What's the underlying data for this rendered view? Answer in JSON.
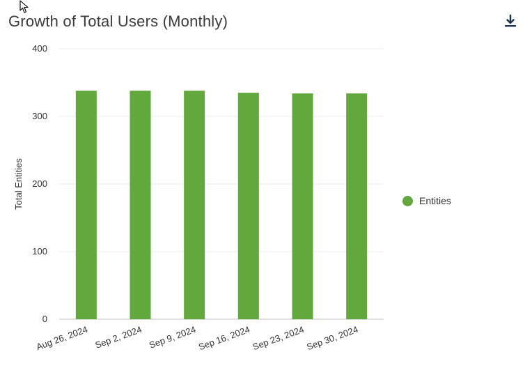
{
  "title": "Growth of Total Users (Monthly)",
  "download_icon": "download-icon",
  "cursor_icon": "arrow-cursor-icon",
  "colors": {
    "bar": "#63a83d",
    "grid": "#ebebeb",
    "axis": "#bfbfbf",
    "text": "#333333"
  },
  "chart_data": {
    "type": "bar",
    "categories": [
      "Aug 26, 2024",
      "Sep 2, 2024",
      "Sep 9, 2024",
      "Sep 16, 2024",
      "Sep 23, 2024",
      "Sep 30, 2024"
    ],
    "series": [
      {
        "name": "Entities",
        "values": [
          338,
          338,
          338,
          335,
          334,
          334
        ]
      }
    ],
    "ylabel": "Total Entities",
    "xlabel": "",
    "ylim": [
      0,
      400
    ],
    "yticks": [
      "0",
      "100",
      "200",
      "300",
      "400"
    ],
    "grid": true,
    "legend_position": "right"
  }
}
